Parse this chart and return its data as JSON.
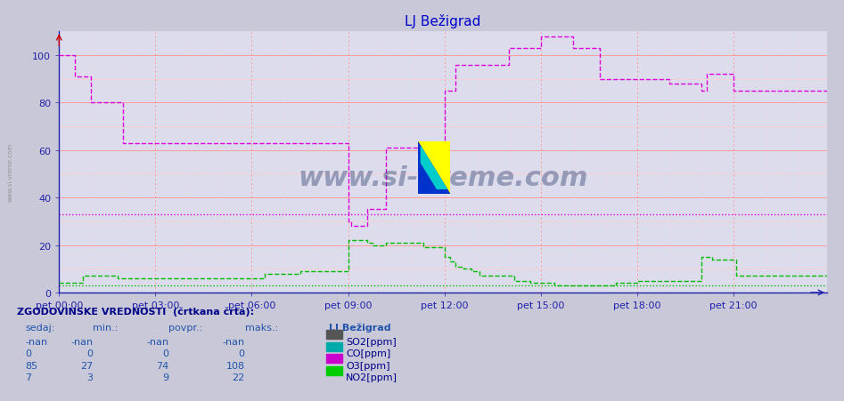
{
  "title": "LJ Bežigrad",
  "title_color": "#0000cc",
  "fig_bg_color": "#c8c8d8",
  "plot_bg_color": "#dcdcec",
  "xlim": [
    0,
    287
  ],
  "ylim": [
    0,
    110
  ],
  "yticks": [
    0,
    20,
    40,
    60,
    80,
    100
  ],
  "xtick_labels": [
    "pet 00:00",
    "pet 03:00",
    "pet 06:00",
    "pet 09:00",
    "pet 12:00",
    "pet 15:00",
    "pet 18:00",
    "pet 21:00"
  ],
  "xtick_positions": [
    0,
    36,
    72,
    108,
    144,
    180,
    216,
    252
  ],
  "grid_h_major_color": "#ff9999",
  "grid_h_minor_color": "#ffcccc",
  "grid_v_major_color": "#ff9999",
  "grid_v_minor_color": "#ffcccc",
  "watermark": "www.si-vreme.com",
  "watermark_color": "#2a3a6a",
  "side_label": "www.si-vreme.com",
  "o3_color": "#dd00dd",
  "no2_color": "#00bb00",
  "co_color": "#00bbbb",
  "so2_color": "#555555",
  "o3_hist_y": 33,
  "no2_hist_y": 3,
  "axis_color": "#2222aa",
  "spine_color": "#2222aa",
  "table_header": "ZGODOVINSKE VREDNOSTI  (črtkana črta):",
  "col_headers": [
    "sedaj:",
    "min.:",
    "povpr.:",
    "maks.:",
    "LJ Bežigrad"
  ],
  "table_data": [
    [
      "-nan",
      "-nan",
      "-nan",
      "-nan",
      "SO2[ppm]"
    ],
    [
      "0",
      "0",
      "0",
      "0",
      "CO[ppm]"
    ],
    [
      "85",
      "27",
      "74",
      "108",
      "O3[ppm]"
    ],
    [
      "7",
      "3",
      "9",
      "22",
      "NO2[ppm]"
    ]
  ],
  "icon_colors": [
    "#555555",
    "#00aaaa",
    "#cc00cc",
    "#00cc00"
  ],
  "o3_data": [
    [
      0,
      100
    ],
    [
      6,
      91
    ],
    [
      12,
      80
    ],
    [
      24,
      63
    ],
    [
      108,
      30
    ],
    [
      109,
      28
    ],
    [
      115,
      35
    ],
    [
      122,
      61
    ],
    [
      144,
      85
    ],
    [
      148,
      96
    ],
    [
      168,
      103
    ],
    [
      180,
      108
    ],
    [
      192,
      103
    ],
    [
      202,
      90
    ],
    [
      228,
      88
    ],
    [
      240,
      85
    ],
    [
      242,
      92
    ],
    [
      252,
      85
    ],
    [
      287,
      85
    ]
  ],
  "no2_data": [
    [
      0,
      4
    ],
    [
      9,
      7
    ],
    [
      22,
      6
    ],
    [
      77,
      8
    ],
    [
      90,
      9
    ],
    [
      108,
      22
    ],
    [
      115,
      21
    ],
    [
      117,
      20
    ],
    [
      122,
      21
    ],
    [
      136,
      19
    ],
    [
      144,
      15
    ],
    [
      146,
      13
    ],
    [
      148,
      11
    ],
    [
      151,
      10
    ],
    [
      154,
      9
    ],
    [
      157,
      7
    ],
    [
      170,
      5
    ],
    [
      176,
      4
    ],
    [
      185,
      3
    ],
    [
      208,
      4
    ],
    [
      216,
      5
    ],
    [
      240,
      15
    ],
    [
      244,
      14
    ],
    [
      253,
      7
    ],
    [
      287,
      7
    ]
  ]
}
